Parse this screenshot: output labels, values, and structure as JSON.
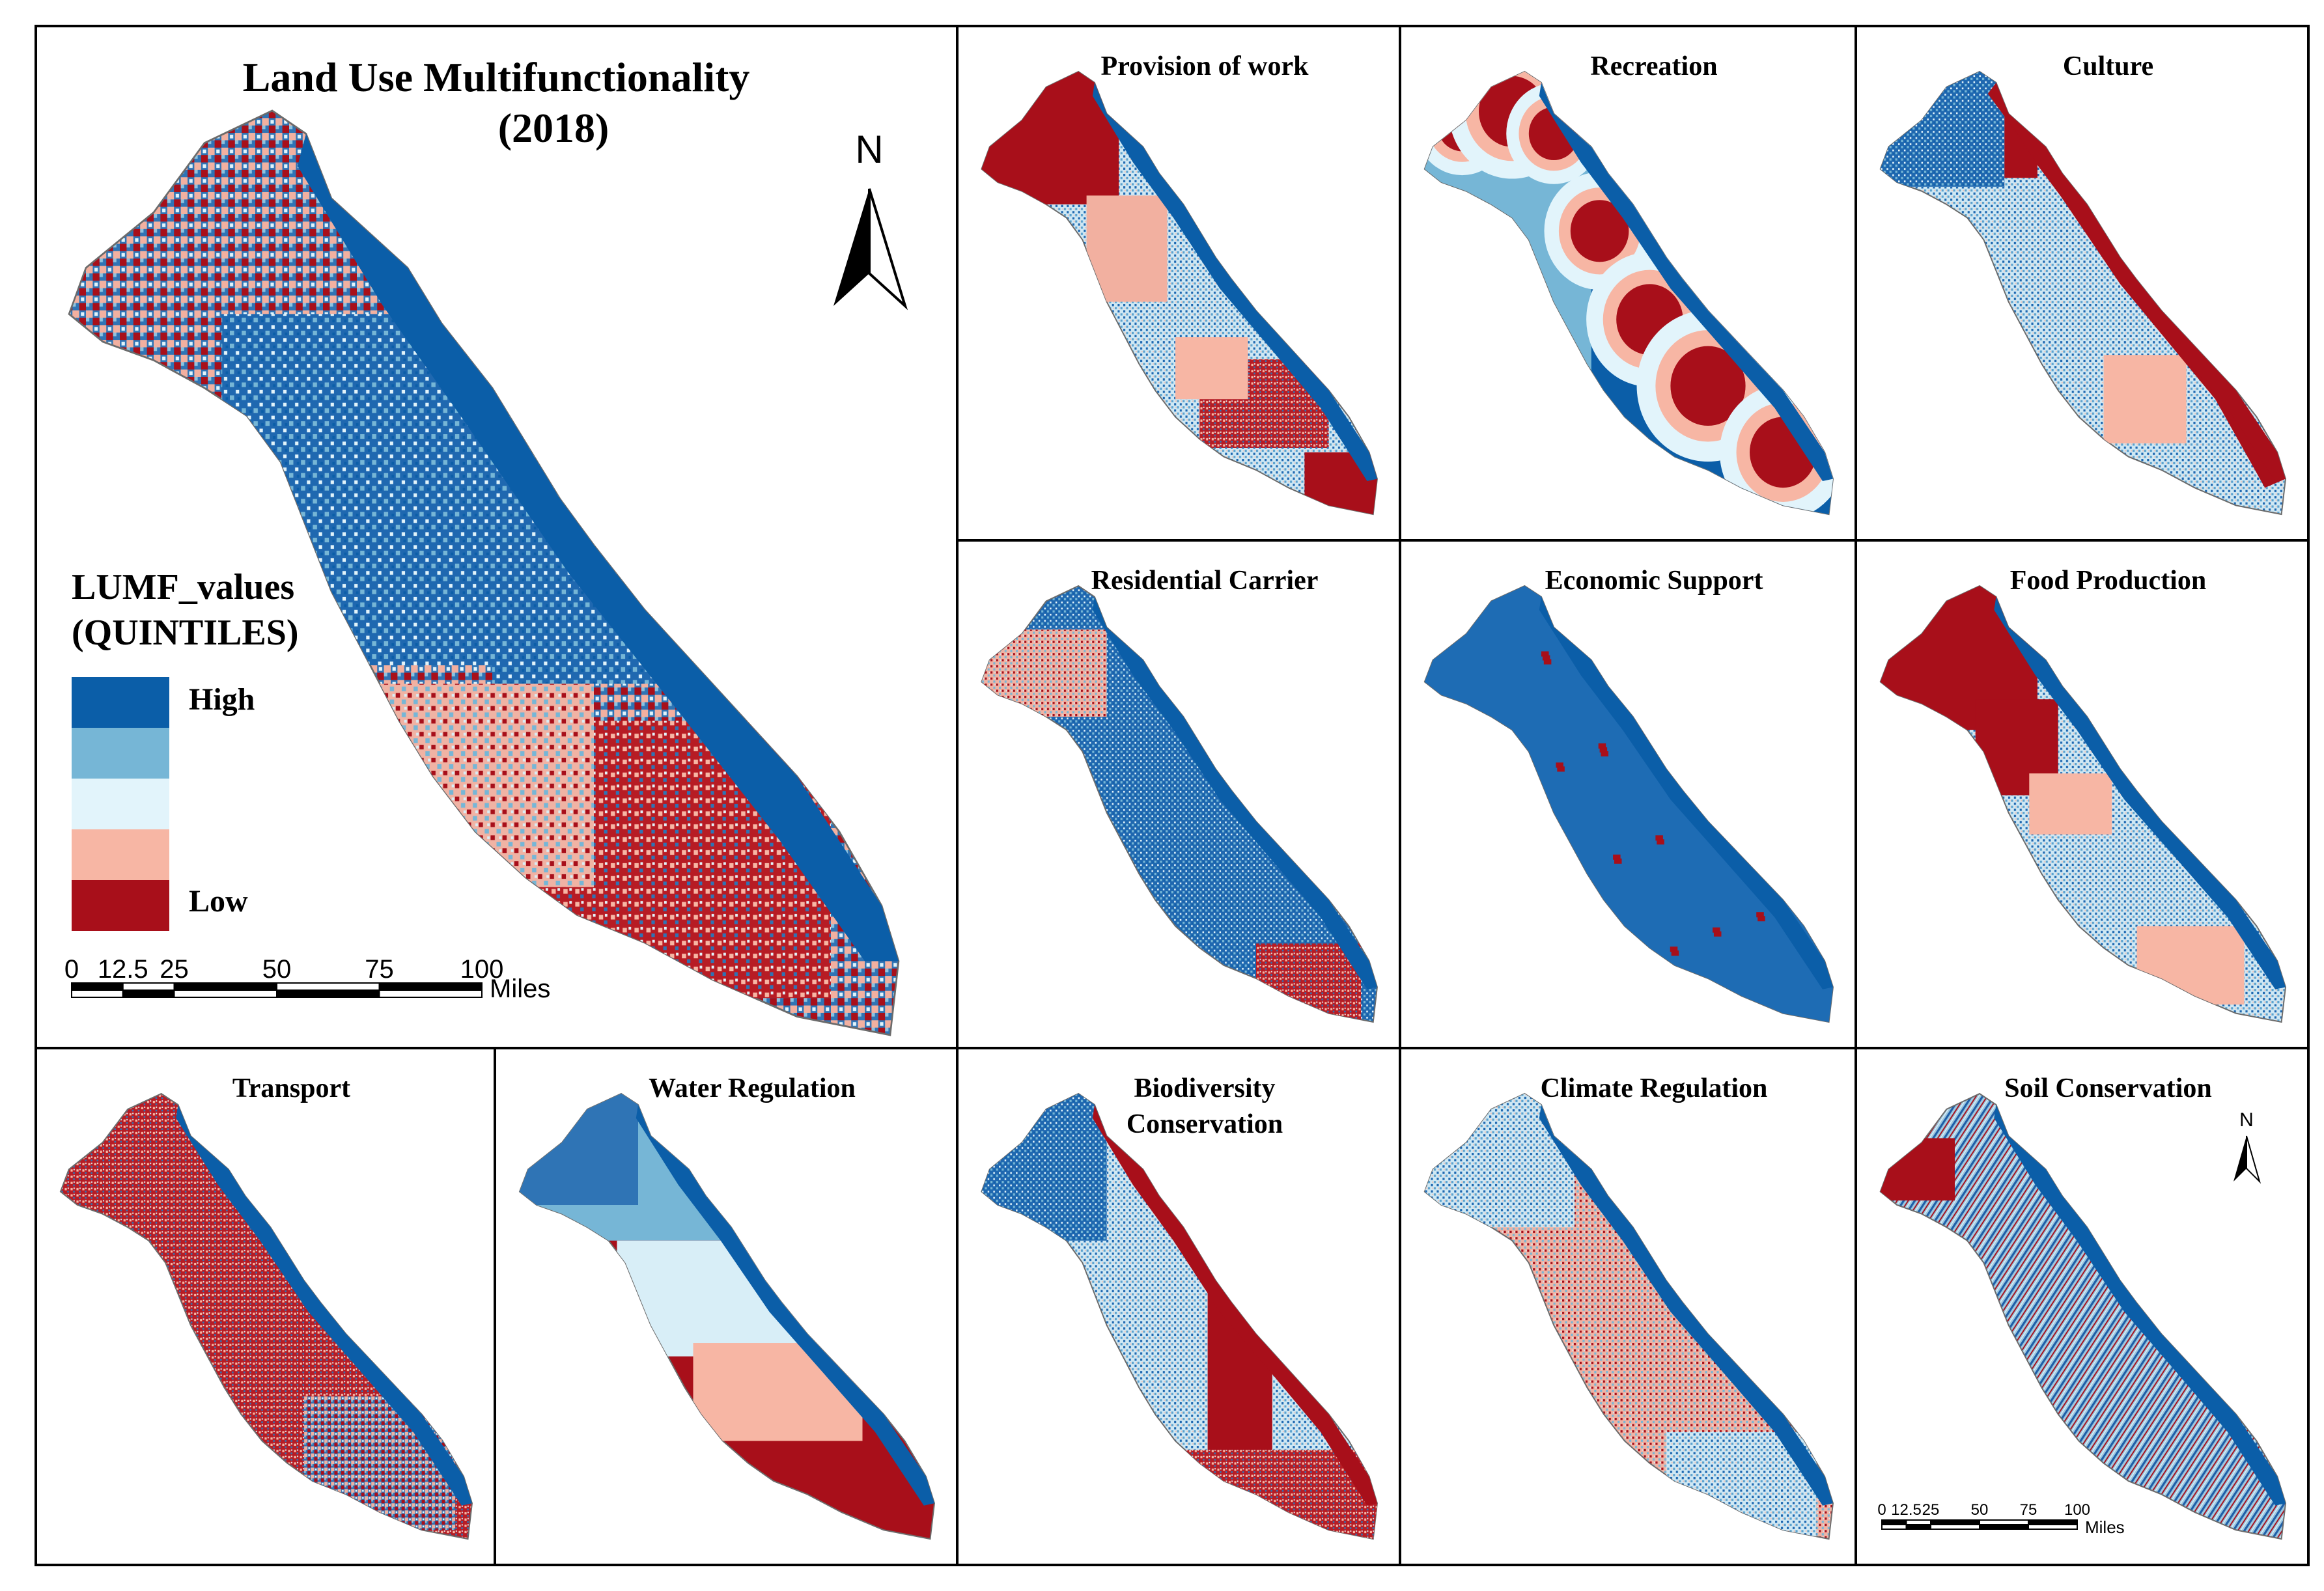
{
  "main": {
    "title_line1": "Land Use Multifunctionality",
    "title_line2": "(2018)",
    "north_label": "N",
    "legend": {
      "title_line1": "LUMF_values",
      "title_line2": "(QUINTILES)",
      "high_label": "High",
      "low_label": "Low",
      "classes": [
        "#0b5ea8",
        "#76b6d6",
        "#e2f4fb",
        "#f7b6a4",
        "#a80f1a"
      ]
    },
    "scale": {
      "ticks": [
        "0",
        "12.5",
        "25",
        "50",
        "75",
        "100"
      ],
      "unit": "Miles"
    }
  },
  "panels": [
    {
      "title": "Provision of work",
      "scheme": "work"
    },
    {
      "title": "Recreation",
      "scheme": "recreation"
    },
    {
      "title": "Culture",
      "scheme": "culture"
    },
    {
      "title": "Residential Carrier",
      "scheme": "residential"
    },
    {
      "title": "Economic Support",
      "scheme": "economic"
    },
    {
      "title": "Food Production",
      "scheme": "food"
    },
    {
      "title": "Transport",
      "scheme": "transport"
    },
    {
      "title": "Water Regulation",
      "scheme": "water"
    },
    {
      "title_line1": "Biodiversity",
      "title_line2": "Conservation",
      "scheme": "biodiversity"
    },
    {
      "title": "Climate Regulation",
      "scheme": "climate"
    },
    {
      "title": "Soil Conservation",
      "scheme": "soil"
    }
  ],
  "soil_panel_extras": {
    "north_label": "N",
    "scale": {
      "ticks": [
        "0",
        "12.5",
        "25",
        "50",
        "75",
        "100"
      ],
      "unit": "Miles"
    }
  }
}
